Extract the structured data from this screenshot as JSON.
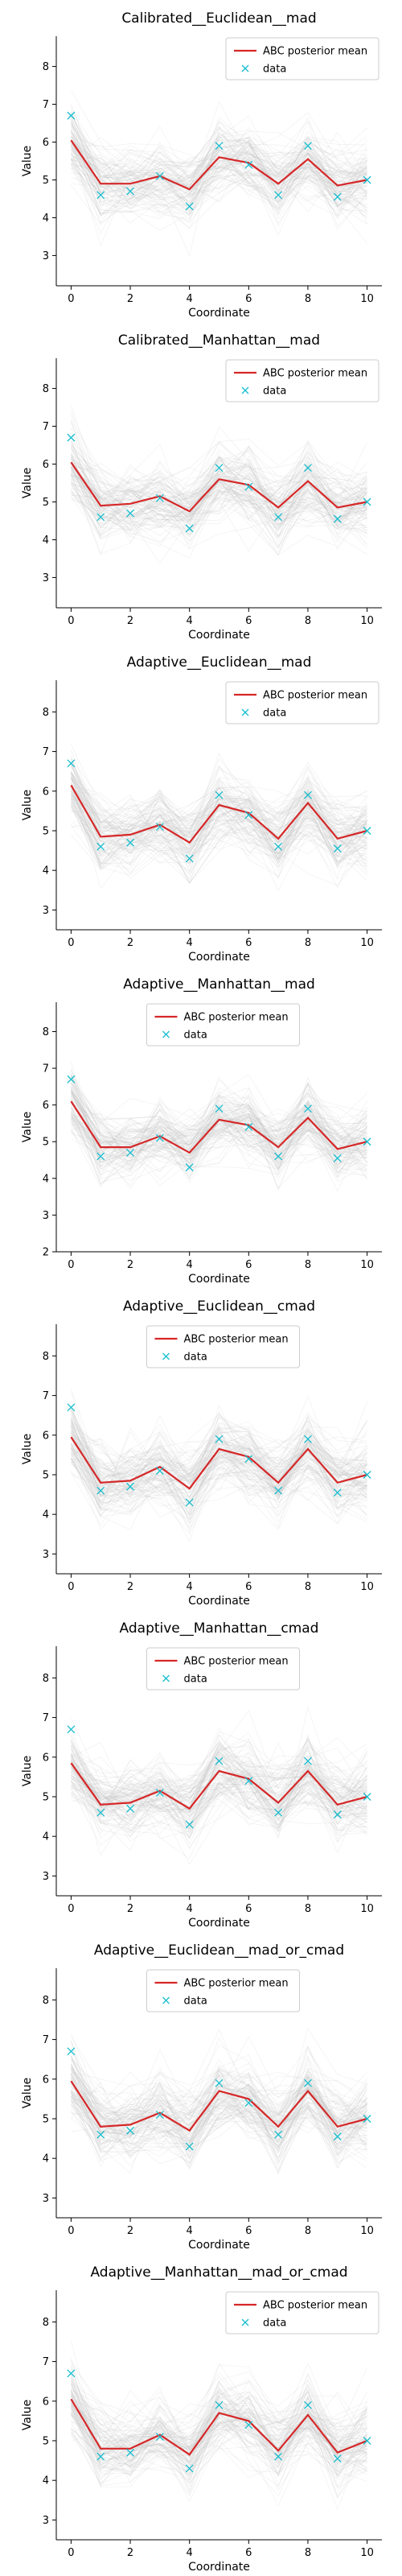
{
  "legend": {
    "mean_label": "ABC posterior mean",
    "data_label": "data"
  },
  "colors": {
    "mean": "#d62728",
    "data": "#17becf",
    "samples": "#bfbfbf",
    "axis": "#000000"
  },
  "chart_data": [
    {
      "type": "line",
      "title": "Calibrated__Euclidean__mad",
      "xlabel": "Coordinate",
      "ylabel": "Value",
      "xlim": [
        -0.5,
        10.5
      ],
      "ylim": [
        2.2,
        8.8
      ],
      "xticks": [
        0,
        2,
        4,
        6,
        8,
        10
      ],
      "yticks": [
        3,
        4,
        5,
        6,
        7,
        8
      ],
      "legend_position": "top-right",
      "grid": false,
      "x": [
        0,
        1,
        2,
        3,
        4,
        5,
        6,
        7,
        8,
        9,
        10
      ],
      "series": [
        {
          "name": "ABC posterior mean",
          "kind": "line",
          "values": [
            6.05,
            4.9,
            4.9,
            5.1,
            4.75,
            5.6,
            5.45,
            4.9,
            5.55,
            4.85,
            5.0
          ]
        },
        {
          "name": "data",
          "kind": "marker",
          "values": [
            6.7,
            4.6,
            4.7,
            5.1,
            4.3,
            5.9,
            5.4,
            4.6,
            5.9,
            4.55,
            5.0
          ]
        }
      ]
    },
    {
      "type": "line",
      "title": "Calibrated__Manhattan__mad",
      "xlabel": "Coordinate",
      "ylabel": "Value",
      "xlim": [
        -0.5,
        10.5
      ],
      "ylim": [
        2.2,
        8.8
      ],
      "xticks": [
        0,
        2,
        4,
        6,
        8,
        10
      ],
      "yticks": [
        3,
        4,
        5,
        6,
        7,
        8
      ],
      "legend_position": "top-right",
      "grid": false,
      "x": [
        0,
        1,
        2,
        3,
        4,
        5,
        6,
        7,
        8,
        9,
        10
      ],
      "series": [
        {
          "name": "ABC posterior mean",
          "kind": "line",
          "values": [
            6.05,
            4.9,
            4.95,
            5.15,
            4.75,
            5.6,
            5.45,
            4.85,
            5.55,
            4.85,
            5.0
          ]
        },
        {
          "name": "data",
          "kind": "marker",
          "values": [
            6.7,
            4.6,
            4.7,
            5.1,
            4.3,
            5.9,
            5.4,
            4.6,
            5.9,
            4.55,
            5.0
          ]
        }
      ]
    },
    {
      "type": "line",
      "title": "Adaptive__Euclidean__mad",
      "xlabel": "Coordinate",
      "ylabel": "Value",
      "xlim": [
        -0.5,
        10.5
      ],
      "ylim": [
        2.5,
        8.8
      ],
      "xticks": [
        0,
        2,
        4,
        6,
        8,
        10
      ],
      "yticks": [
        3,
        4,
        5,
        6,
        7,
        8
      ],
      "legend_position": "top-right",
      "grid": false,
      "x": [
        0,
        1,
        2,
        3,
        4,
        5,
        6,
        7,
        8,
        9,
        10
      ],
      "series": [
        {
          "name": "ABC posterior mean",
          "kind": "line",
          "values": [
            6.15,
            4.85,
            4.9,
            5.15,
            4.7,
            5.65,
            5.45,
            4.8,
            5.7,
            4.8,
            5.0
          ]
        },
        {
          "name": "data",
          "kind": "marker",
          "values": [
            6.7,
            4.6,
            4.7,
            5.1,
            4.3,
            5.9,
            5.4,
            4.6,
            5.9,
            4.55,
            5.0
          ]
        }
      ]
    },
    {
      "type": "line",
      "title": "Adaptive__Manhattan__mad",
      "xlabel": "Coordinate",
      "ylabel": "Value",
      "xlim": [
        -0.5,
        10.5
      ],
      "ylim": [
        2.0,
        8.8
      ],
      "xticks": [
        0,
        2,
        4,
        6,
        8,
        10
      ],
      "yticks": [
        2,
        3,
        4,
        5,
        6,
        7,
        8
      ],
      "legend_position": "top-center",
      "grid": false,
      "x": [
        0,
        1,
        2,
        3,
        4,
        5,
        6,
        7,
        8,
        9,
        10
      ],
      "series": [
        {
          "name": "ABC posterior mean",
          "kind": "line",
          "values": [
            6.1,
            4.85,
            4.85,
            5.15,
            4.7,
            5.6,
            5.45,
            4.85,
            5.65,
            4.8,
            5.0
          ]
        },
        {
          "name": "data",
          "kind": "marker",
          "values": [
            6.7,
            4.6,
            4.7,
            5.1,
            4.3,
            5.9,
            5.4,
            4.6,
            5.9,
            4.55,
            5.0
          ]
        }
      ]
    },
    {
      "type": "line",
      "title": "Adaptive__Euclidean__cmad",
      "xlabel": "Coordinate",
      "ylabel": "Value",
      "xlim": [
        -0.5,
        10.5
      ],
      "ylim": [
        2.5,
        8.8
      ],
      "xticks": [
        0,
        2,
        4,
        6,
        8,
        10
      ],
      "yticks": [
        3,
        4,
        5,
        6,
        7,
        8
      ],
      "legend_position": "top-center",
      "grid": false,
      "x": [
        0,
        1,
        2,
        3,
        4,
        5,
        6,
        7,
        8,
        9,
        10
      ],
      "series": [
        {
          "name": "ABC posterior mean",
          "kind": "line",
          "values": [
            5.95,
            4.8,
            4.85,
            5.2,
            4.65,
            5.65,
            5.45,
            4.8,
            5.65,
            4.8,
            5.0
          ]
        },
        {
          "name": "data",
          "kind": "marker",
          "values": [
            6.7,
            4.6,
            4.7,
            5.1,
            4.3,
            5.9,
            5.4,
            4.6,
            5.9,
            4.55,
            5.0
          ]
        }
      ]
    },
    {
      "type": "line",
      "title": "Adaptive__Manhattan__cmad",
      "xlabel": "Coordinate",
      "ylabel": "Value",
      "xlim": [
        -0.5,
        10.5
      ],
      "ylim": [
        2.5,
        8.8
      ],
      "xticks": [
        0,
        2,
        4,
        6,
        8,
        10
      ],
      "yticks": [
        3,
        4,
        5,
        6,
        7,
        8
      ],
      "legend_position": "top-center",
      "grid": false,
      "x": [
        0,
        1,
        2,
        3,
        4,
        5,
        6,
        7,
        8,
        9,
        10
      ],
      "series": [
        {
          "name": "ABC posterior mean",
          "kind": "line",
          "values": [
            5.85,
            4.8,
            4.85,
            5.15,
            4.7,
            5.65,
            5.45,
            4.85,
            5.65,
            4.8,
            5.0
          ]
        },
        {
          "name": "data",
          "kind": "marker",
          "values": [
            6.7,
            4.6,
            4.7,
            5.1,
            4.3,
            5.9,
            5.4,
            4.6,
            5.9,
            4.55,
            5.0
          ]
        }
      ]
    },
    {
      "type": "line",
      "title": "Adaptive__Euclidean__mad_or_cmad",
      "xlabel": "Coordinate",
      "ylabel": "Value",
      "xlim": [
        -0.5,
        10.5
      ],
      "ylim": [
        2.5,
        8.8
      ],
      "xticks": [
        0,
        2,
        4,
        6,
        8,
        10
      ],
      "yticks": [
        3,
        4,
        5,
        6,
        7,
        8
      ],
      "legend_position": "top-center",
      "grid": false,
      "x": [
        0,
        1,
        2,
        3,
        4,
        5,
        6,
        7,
        8,
        9,
        10
      ],
      "series": [
        {
          "name": "ABC posterior mean",
          "kind": "line",
          "values": [
            5.95,
            4.8,
            4.85,
            5.15,
            4.7,
            5.7,
            5.5,
            4.8,
            5.7,
            4.8,
            5.0
          ]
        },
        {
          "name": "data",
          "kind": "marker",
          "values": [
            6.7,
            4.6,
            4.7,
            5.1,
            4.3,
            5.9,
            5.4,
            4.6,
            5.9,
            4.55,
            5.0
          ]
        }
      ]
    },
    {
      "type": "line",
      "title": "Adaptive__Manhattan__mad_or_cmad",
      "xlabel": "Coordinate",
      "ylabel": "Value",
      "xlim": [
        -0.5,
        10.5
      ],
      "ylim": [
        2.5,
        8.8
      ],
      "xticks": [
        0,
        2,
        4,
        6,
        8,
        10
      ],
      "yticks": [
        3,
        4,
        5,
        6,
        7,
        8
      ],
      "legend_position": "top-right",
      "grid": false,
      "x": [
        0,
        1,
        2,
        3,
        4,
        5,
        6,
        7,
        8,
        9,
        10
      ],
      "series": [
        {
          "name": "ABC posterior mean",
          "kind": "line",
          "values": [
            6.05,
            4.8,
            4.8,
            5.15,
            4.65,
            5.7,
            5.5,
            4.75,
            5.65,
            4.7,
            5.0
          ]
        },
        {
          "name": "data",
          "kind": "marker",
          "values": [
            6.7,
            4.6,
            4.7,
            5.1,
            4.3,
            5.9,
            5.4,
            4.6,
            5.9,
            4.55,
            5.0
          ]
        }
      ]
    }
  ]
}
